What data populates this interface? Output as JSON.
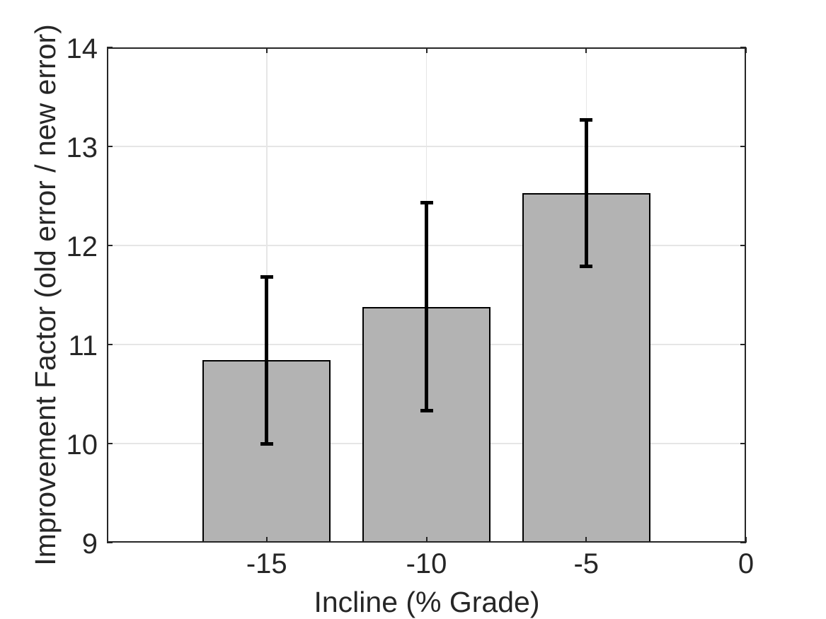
{
  "chart_data": {
    "type": "bar",
    "xlabel": "Incline (% Grade)",
    "ylabel": "Improvement Factor (old error / new error)",
    "categories": [
      -15,
      -10,
      -5
    ],
    "values": [
      10.84,
      11.38,
      12.53
    ],
    "error_plus": [
      0.84,
      1.05,
      0.74
    ],
    "error_minus": [
      0.84,
      1.05,
      0.74
    ],
    "bar_width_in_units": 4,
    "xlim": [
      -20,
      0
    ],
    "ylim": [
      9,
      14
    ],
    "xticks": [
      -15,
      -10,
      -5,
      0
    ],
    "yticks": [
      9,
      10,
      11,
      12,
      13,
      14
    ],
    "grid": true,
    "legend": false,
    "colors": {
      "bar_fill": "#b3b3b3",
      "bar_edge": "#000000",
      "error_bar": "#000000",
      "grid": "#e6e6e6",
      "axis": "#262626",
      "text": "#262626",
      "background": "#ffffff"
    }
  }
}
